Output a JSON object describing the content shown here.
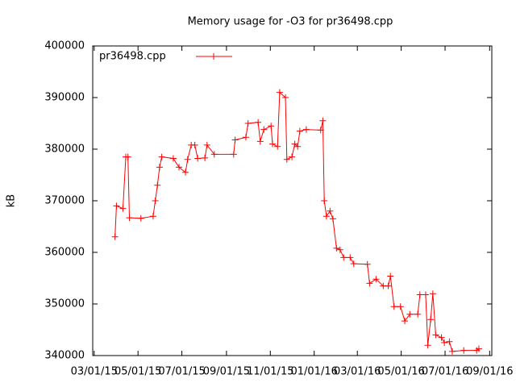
{
  "chart_data": {
    "type": "line",
    "title": "Memory usage for -O3 for pr36498.cpp",
    "y_label": "kB",
    "legend": "top-left",
    "x": [
      "2015-03-30",
      "2015-04-01",
      "2015-04-10",
      "2015-04-14",
      "2015-04-17",
      "2015-04-19",
      "2015-05-05",
      "2015-05-22",
      "2015-05-25",
      "2015-05-28",
      "2015-05-31",
      "2015-06-03",
      "2015-06-19",
      "2015-06-27",
      "2015-07-06",
      "2015-07-09",
      "2015-07-14",
      "2015-07-19",
      "2015-07-23",
      "2015-08-02",
      "2015-08-05",
      "2015-08-15",
      "2015-09-11",
      "2015-09-13",
      "2015-09-28",
      "2015-10-01",
      "2015-10-15",
      "2015-10-18",
      "2015-10-23",
      "2015-11-02",
      "2015-11-04",
      "2015-11-11",
      "2015-11-14",
      "2015-11-22",
      "2015-11-24",
      "2015-12-01",
      "2015-12-05",
      "2015-12-09",
      "2015-12-12",
      "2015-12-21",
      "2016-01-10",
      "2016-01-13",
      "2016-01-15",
      "2016-01-18",
      "2016-01-23",
      "2016-01-27",
      "2016-02-01",
      "2016-02-06",
      "2016-02-11",
      "2016-02-20",
      "2016-02-25",
      "2016-03-15",
      "2016-03-18",
      "2016-03-27",
      "2016-04-06",
      "2016-04-13",
      "2016-04-16",
      "2016-04-21",
      "2016-04-30",
      "2016-05-06",
      "2016-05-13",
      "2016-05-24",
      "2016-05-27",
      "2016-06-04",
      "2016-06-07",
      "2016-06-11",
      "2016-06-14",
      "2016-06-18",
      "2016-06-26",
      "2016-06-30",
      "2016-07-07",
      "2016-07-11",
      "2016-07-27",
      "2016-08-14",
      "2016-08-17"
    ],
    "series": [
      {
        "name": "pr36498.cpp",
        "color": "#ff0000",
        "values": [
          363000,
          369000,
          368500,
          378500,
          378500,
          366700,
          366600,
          367000,
          370000,
          373000,
          376500,
          378500,
          378200,
          376500,
          375500,
          378000,
          380800,
          380800,
          378200,
          378300,
          380800,
          379000,
          379000,
          381800,
          382300,
          385000,
          385200,
          381500,
          383800,
          384500,
          381000,
          380500,
          391000,
          390000,
          378000,
          378500,
          381000,
          380500,
          383500,
          383800,
          383700,
          385500,
          370000,
          367000,
          368000,
          366500,
          360800,
          360500,
          359000,
          359000,
          357800,
          357700,
          354000,
          354800,
          353500,
          353500,
          355400,
          349500,
          349500,
          346700,
          348000,
          348000,
          351800,
          351800,
          342000,
          347000,
          352000,
          344000,
          343500,
          342500,
          342700,
          340800,
          341000,
          341000,
          341300
        ]
      }
    ],
    "xlim": [
      "2015-02-27",
      "2016-09-04"
    ],
    "xticks": [
      {
        "value": "2015-03-01",
        "label": "03/01/15"
      },
      {
        "value": "2015-05-01",
        "label": "05/01/15"
      },
      {
        "value": "2015-07-01",
        "label": "07/01/15"
      },
      {
        "value": "2015-09-01",
        "label": "09/01/15"
      },
      {
        "value": "2015-11-01",
        "label": "11/01/15"
      },
      {
        "value": "2016-01-01",
        "label": "01/01/16"
      },
      {
        "value": "2016-03-01",
        "label": "03/01/16"
      },
      {
        "value": "2016-05-01",
        "label": "05/01/16"
      },
      {
        "value": "2016-07-01",
        "label": "07/01/16"
      },
      {
        "value": "2016-09-01",
        "label": "09/01/16"
      }
    ],
    "ylim": [
      340000,
      400000
    ],
    "yticks": [
      340000,
      350000,
      360000,
      370000,
      380000,
      390000,
      400000
    ]
  }
}
